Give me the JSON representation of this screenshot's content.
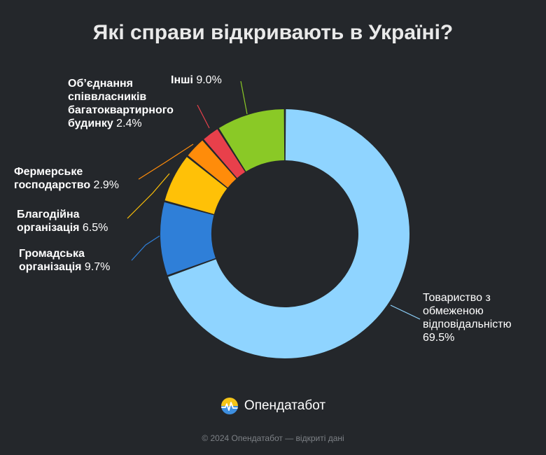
{
  "title": "Які справи відкривають в Україні?",
  "brand": {
    "logo_text": "Опендатабот",
    "colors": {
      "top": "#f5c518",
      "bottom": "#3d8fe0"
    }
  },
  "footer": "© 2024 Опендатабот — відкриті дані",
  "chart_data": {
    "type": "pie",
    "variant": "donut",
    "title": "Які справи відкривають в Україні?",
    "unit": "%",
    "slices": [
      {
        "label": "Товариство з обмеженою відповідальністю",
        "label_lines": [
          "Товариство з",
          "обмеженою",
          "відповідальністю",
          "69.5%"
        ],
        "value": 69.5,
        "pct_text": "69.5%",
        "color": "#8fd4ff",
        "name_bold": false
      },
      {
        "label": "Громадська організація",
        "label_lines": [
          "Громадська",
          "організація"
        ],
        "value": 9.7,
        "pct_text": "9.7%",
        "color": "#2f7fd8",
        "name_bold": true
      },
      {
        "label": "Благодійна організація",
        "label_lines": [
          "Благодійна",
          "організація"
        ],
        "value": 6.5,
        "pct_text": "6.5%",
        "color": "#ffc107",
        "name_bold": true
      },
      {
        "label": "Фермерське господарство",
        "label_lines": [
          "Фермерське",
          "господарство"
        ],
        "value": 2.9,
        "pct_text": "2.9%",
        "color": "#ff8c0a",
        "name_bold": true
      },
      {
        "label": "Об’єднання співвласників багатоквартирного будинку",
        "label_lines": [
          "Об’єднання",
          "співвласників",
          "багатоквартирного",
          "будинку"
        ],
        "value": 2.4,
        "pct_text": "2.4%",
        "color": "#e8404b",
        "name_bold": true
      },
      {
        "label": "Інші",
        "label_lines": [
          "Інші"
        ],
        "value": 9.0,
        "pct_text": "9.0%",
        "color": "#8ac926",
        "name_bold": true
      }
    ],
    "start_angle_deg": 0,
    "direction": "clockwise"
  }
}
